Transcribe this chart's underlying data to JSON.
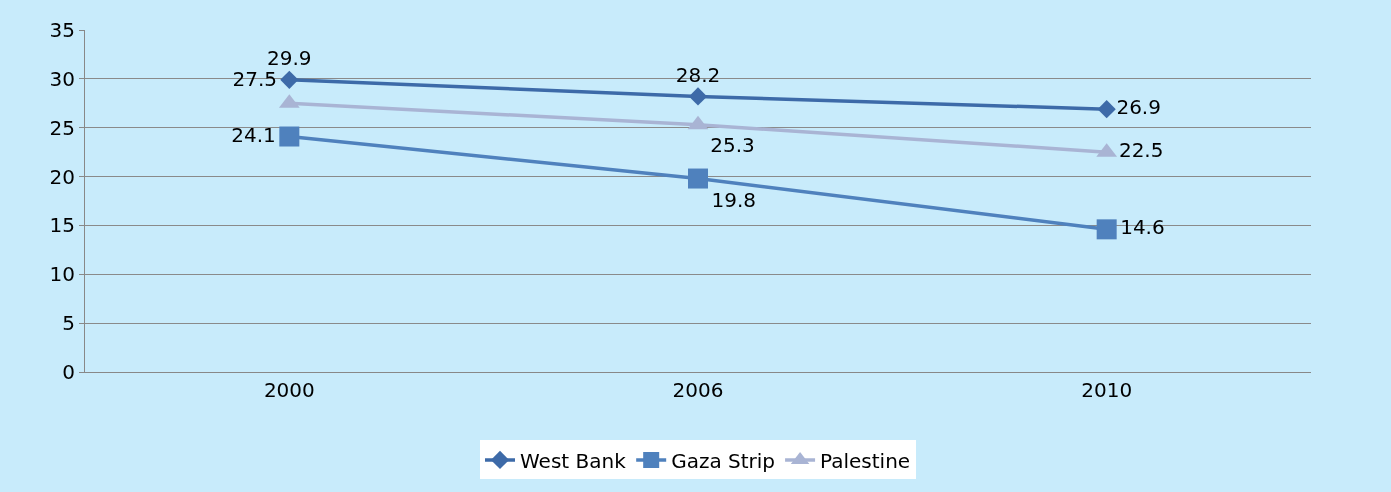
{
  "chart_data": {
    "type": "line",
    "categories": [
      "2000",
      "2006",
      "2010"
    ],
    "series": [
      {
        "name": "West Bank",
        "color": "#3d6aa8",
        "marker": "diamond",
        "values": [
          29.9,
          28.2,
          26.9
        ]
      },
      {
        "name": "Gaza Strip",
        "color": "#4f81bd",
        "marker": "square",
        "values": [
          24.1,
          19.8,
          14.6
        ]
      },
      {
        "name": "Palestine",
        "color": "#a9b4d4",
        "marker": "triangle",
        "values": [
          27.5,
          25.3,
          22.5
        ]
      }
    ],
    "ylim": [
      0,
      35
    ],
    "yticks": [
      0,
      5,
      10,
      15,
      20,
      25,
      30,
      35
    ],
    "grid": "y",
    "legend": "bottom",
    "data_labels": true,
    "line_style": "solid"
  }
}
